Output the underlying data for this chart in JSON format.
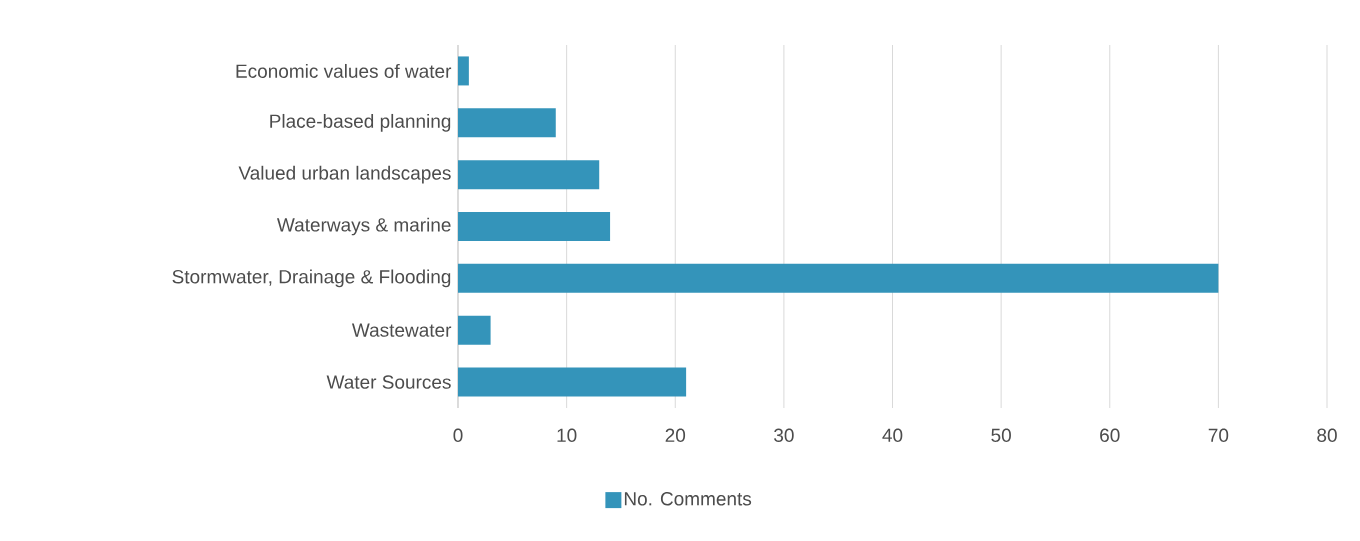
{
  "chart_data": {
    "type": "bar",
    "orientation": "horizontal",
    "categories": [
      "Economic values of water",
      "Place-based planning",
      "Valued urban landscapes",
      "Waterways & marine",
      "Stormwater, Drainage & Flooding",
      "Wastewater",
      "Water Sources"
    ],
    "series": [
      {
        "name": "No. Comments",
        "color": "#3494ba",
        "values": [
          1,
          9,
          13,
          14,
          70,
          3,
          21
        ]
      }
    ],
    "xlim": [
      0,
      80
    ],
    "xticks": [
      0,
      10,
      20,
      30,
      40,
      50,
      60,
      70,
      80
    ],
    "grid": "x",
    "legend": "bottom"
  }
}
